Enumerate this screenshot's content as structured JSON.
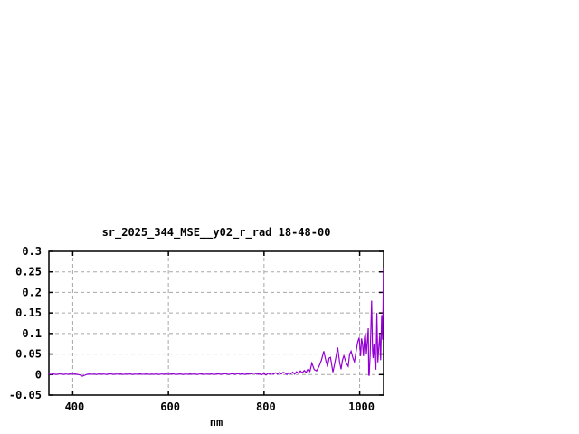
{
  "window": {
    "background": "#ffffff"
  },
  "chart_data": {
    "type": "line",
    "title": "sr_2025_344_MSE__y02_r_rad 18-48-00",
    "xlabel": "nm",
    "ylabel": "",
    "xlim": [
      350,
      1050
    ],
    "ylim": [
      -0.05,
      0.3
    ],
    "xticks": [
      {
        "v": 400,
        "label": "400"
      },
      {
        "v": 600,
        "label": "600"
      },
      {
        "v": 800,
        "label": "800"
      },
      {
        "v": 1000,
        "label": "1000"
      }
    ],
    "yticks": [
      {
        "v": -0.05,
        "label": "-0.05"
      },
      {
        "v": 0,
        "label": "0"
      },
      {
        "v": 0.05,
        "label": "0.05"
      },
      {
        "v": 0.1,
        "label": "0.1"
      },
      {
        "v": 0.15,
        "label": "0.15"
      },
      {
        "v": 0.2,
        "label": "0.2"
      },
      {
        "v": 0.25,
        "label": "0.25"
      },
      {
        "v": 0.3,
        "label": "0.3"
      }
    ],
    "grid": true,
    "legend": "none",
    "colors": {
      "line": "#9400d3",
      "grid": "#a8a8a8",
      "axis": "#000000",
      "text": "#000000",
      "background": "#ffffff"
    },
    "series": [
      {
        "points": [
          [
            350,
            0.001
          ],
          [
            355,
            0.0006
          ],
          [
            360,
            0.0014
          ],
          [
            365,
            0.0004
          ],
          [
            370,
            0.0012
          ],
          [
            375,
            0.0016
          ],
          [
            380,
            0.0005
          ],
          [
            385,
            0.0013
          ],
          [
            390,
            0.0007
          ],
          [
            395,
            0.0015
          ],
          [
            400,
            0.0009
          ],
          [
            405,
            0.0014
          ],
          [
            410,
            0.0004
          ],
          [
            415,
            -0.001
          ],
          [
            420,
            -0.004
          ],
          [
            425,
            -0.0015
          ],
          [
            430,
            0.0008
          ],
          [
            435,
            0.0016
          ],
          [
            440,
            0.0006
          ],
          [
            445,
            0.0013
          ],
          [
            450,
            0.0005
          ],
          [
            455,
            0.0015
          ],
          [
            460,
            0.0008
          ],
          [
            465,
            0.0012
          ],
          [
            470,
            0.0004
          ],
          [
            475,
            0.0014
          ],
          [
            480,
            0.0016
          ],
          [
            485,
            0.0006
          ],
          [
            490,
            0.0012
          ],
          [
            495,
            0.0008
          ],
          [
            500,
            0.0015
          ],
          [
            505,
            0.0005
          ],
          [
            510,
            0.0013
          ],
          [
            515,
            0.0009
          ],
          [
            520,
            0.0016
          ],
          [
            525,
            0.0004
          ],
          [
            530,
            0.0012
          ],
          [
            535,
            0.0007
          ],
          [
            540,
            0.0018
          ],
          [
            545,
            0.0006
          ],
          [
            550,
            0.0011
          ],
          [
            555,
            0.0015
          ],
          [
            560,
            0.0005
          ],
          [
            565,
            0.0013
          ],
          [
            570,
            0.0007
          ],
          [
            575,
            0.0016
          ],
          [
            580,
            0.0004
          ],
          [
            585,
            0.0012
          ],
          [
            590,
            0.0008
          ],
          [
            595,
            0.0015
          ],
          [
            600,
            0.0006
          ],
          [
            605,
            0.0013
          ],
          [
            610,
            0.0018
          ],
          [
            615,
            0.0005
          ],
          [
            620,
            0.0011
          ],
          [
            625,
            0.0015
          ],
          [
            630,
            0.0004
          ],
          [
            635,
            0.0013
          ],
          [
            640,
            0.0007
          ],
          [
            645,
            0.0016
          ],
          [
            650,
            0.0009
          ],
          [
            655,
            0.0014
          ],
          [
            660,
            0.0005
          ],
          [
            665,
            0.0012
          ],
          [
            670,
            0.0016
          ],
          [
            675,
            0.0004
          ],
          [
            680,
            0.0013
          ],
          [
            685,
            0.0008
          ],
          [
            690,
            0.0015
          ],
          [
            695,
            0.0005
          ],
          [
            700,
            0.0012
          ],
          [
            705,
            0.0017
          ],
          [
            710,
            0.0006
          ],
          [
            715,
            0.0014
          ],
          [
            720,
            0.0022
          ],
          [
            725,
            0.0004
          ],
          [
            730,
            0.0013
          ],
          [
            735,
            0.0019
          ],
          [
            740,
            0.0006
          ],
          [
            745,
            0.0024
          ],
          [
            750,
            0.0008
          ],
          [
            755,
            0.0018
          ],
          [
            760,
            0.0003
          ],
          [
            765,
            0.0021
          ],
          [
            770,
            0.001
          ],
          [
            775,
            0.0026
          ],
          [
            780,
            0.0035
          ],
          [
            785,
            0.0008
          ],
          [
            790,
            0.002
          ],
          [
            795,
            -0.0005
          ],
          [
            800,
            0.0028
          ],
          [
            804,
            -0.001
          ],
          [
            808,
            0.0032
          ],
          [
            812,
            0.0006
          ],
          [
            816,
            0.004
          ],
          [
            820,
            0.001
          ],
          [
            824,
            0.0045
          ],
          [
            828,
            0.0012
          ],
          [
            832,
            0.005
          ],
          [
            836,
            0.0015
          ],
          [
            840,
            0.0055
          ],
          [
            844,
            0.004
          ],
          [
            848,
            0.0
          ],
          [
            852,
            0.005
          ],
          [
            856,
            0.002
          ],
          [
            860,
            0.006
          ],
          [
            864,
            0.001
          ],
          [
            868,
            0.007
          ],
          [
            872,
            0.003
          ],
          [
            876,
            0.009
          ],
          [
            880,
            0.004
          ],
          [
            884,
            0.01
          ],
          [
            888,
            0.005
          ],
          [
            892,
            0.014
          ],
          [
            896,
            0.008
          ],
          [
            900,
            0.028
          ],
          [
            905,
            0.012
          ],
          [
            910,
            0.009
          ],
          [
            915,
            0.02
          ],
          [
            920,
            0.035
          ],
          [
            925,
            0.057
          ],
          [
            930,
            0.03
          ],
          [
            933,
            0.022
          ],
          [
            936,
            0.04
          ],
          [
            939,
            0.042
          ],
          [
            944,
            0.006
          ],
          [
            948,
            0.028
          ],
          [
            954,
            0.066
          ],
          [
            958,
            0.03
          ],
          [
            961,
            0.013
          ],
          [
            964,
            0.035
          ],
          [
            967,
            0.046
          ],
          [
            972,
            0.028
          ],
          [
            976,
            0.02
          ],
          [
            979,
            0.05
          ],
          [
            982,
            0.057
          ],
          [
            986,
            0.04
          ],
          [
            989,
            0.031
          ],
          [
            993,
            0.06
          ],
          [
            996,
            0.08
          ],
          [
            999,
            0.09
          ],
          [
            1002,
            0.045
          ],
          [
            1004,
            0.088
          ],
          [
            1006,
            0.075
          ],
          [
            1008,
            0.045
          ],
          [
            1010,
            0.09
          ],
          [
            1012,
            0.1
          ],
          [
            1014,
            0.05
          ],
          [
            1016,
            0.08
          ],
          [
            1018,
            0.113
          ],
          [
            1019,
            0.0
          ],
          [
            1020,
            -0.003
          ],
          [
            1022,
            0.05
          ],
          [
            1025,
            0.18
          ],
          [
            1027,
            0.06
          ],
          [
            1028,
            0.04
          ],
          [
            1030,
            0.075
          ],
          [
            1032,
            0.024
          ],
          [
            1034,
            0.012
          ],
          [
            1036,
            0.15
          ],
          [
            1038,
            0.03
          ],
          [
            1040,
            0.065
          ],
          [
            1042,
            0.095
          ],
          [
            1044,
            0.035
          ],
          [
            1046,
            0.145
          ],
          [
            1048,
            0.085
          ],
          [
            1050,
            0.26
          ]
        ]
      }
    ]
  }
}
